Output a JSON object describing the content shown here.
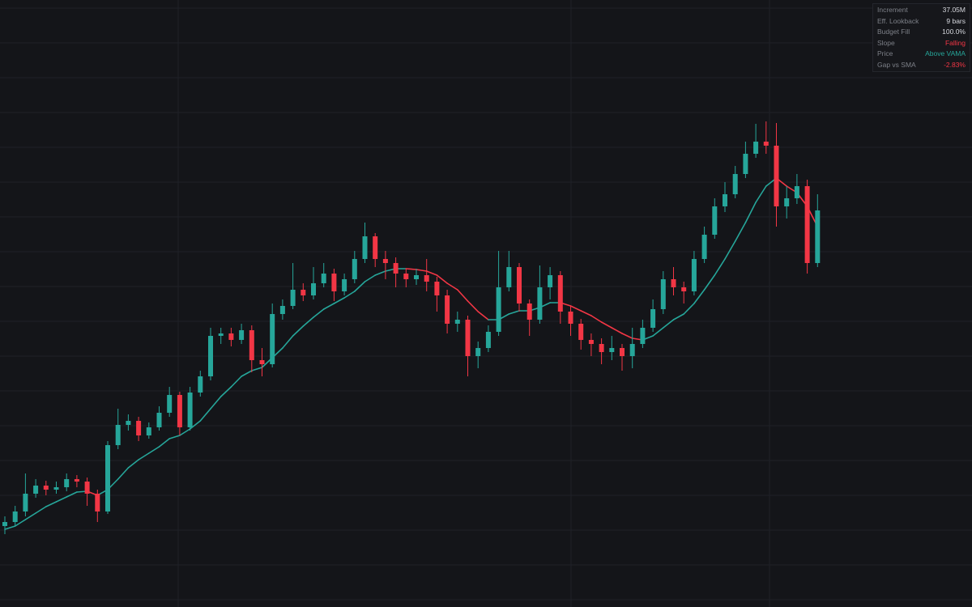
{
  "chart_data": {
    "type": "candlestick",
    "ylim": [
      0,
      750
    ],
    "grid": true,
    "up_color": "#26a69a",
    "down_color": "#f23645",
    "rise_color": "#26a69a",
    "fall_color": "#f23645",
    "open": [
      100,
      105,
      118,
      140,
      150,
      145,
      148,
      158,
      155,
      140,
      118,
      200,
      225,
      230,
      212,
      222,
      240,
      262,
      222,
      265,
      285,
      335,
      338,
      330,
      342,
      305,
      300,
      362,
      372,
      392,
      385,
      400,
      412,
      390,
      405,
      430,
      458,
      430,
      425,
      412,
      405,
      410,
      402,
      385,
      350,
      355,
      310,
      320,
      340,
      395,
      420,
      375,
      355,
      395,
      410,
      365,
      350,
      330,
      325,
      315,
      320,
      310,
      325,
      345,
      368,
      405,
      395,
      390,
      430,
      460,
      495,
      510,
      535,
      560,
      575,
      570,
      495,
      505,
      520,
      425
    ],
    "high": [
      112,
      125,
      165,
      158,
      156,
      155,
      165,
      163,
      160,
      145,
      205,
      245,
      238,
      235,
      228,
      248,
      272,
      266,
      272,
      292,
      345,
      345,
      345,
      350,
      348,
      320,
      375,
      380,
      425,
      400,
      420,
      425,
      418,
      412,
      440,
      475,
      462,
      440,
      432,
      418,
      418,
      430,
      408,
      392,
      365,
      360,
      328,
      348,
      440,
      440,
      425,
      380,
      422,
      420,
      415,
      372,
      356,
      338,
      332,
      335,
      325,
      345,
      355,
      380,
      415,
      420,
      402,
      440,
      470,
      505,
      525,
      545,
      575,
      597,
      600,
      598,
      520,
      535,
      528,
      510
    ],
    "low": [
      90,
      100,
      112,
      135,
      138,
      140,
      143,
      148,
      125,
      105,
      115,
      195,
      218,
      205,
      208,
      218,
      235,
      212,
      218,
      260,
      280,
      325,
      322,
      325,
      290,
      285,
      296,
      355,
      368,
      378,
      380,
      395,
      378,
      385,
      400,
      425,
      420,
      405,
      395,
      395,
      398,
      390,
      365,
      338,
      340,
      285,
      295,
      315,
      335,
      390,
      365,
      335,
      350,
      380,
      350,
      335,
      318,
      310,
      300,
      305,
      292,
      295,
      320,
      340,
      362,
      385,
      375,
      385,
      425,
      455,
      488,
      505,
      530,
      555,
      560,
      470,
      480,
      498,
      412,
      420
    ],
    "close": [
      105,
      118,
      140,
      150,
      145,
      148,
      158,
      155,
      140,
      118,
      200,
      225,
      230,
      212,
      222,
      240,
      262,
      222,
      265,
      285,
      335,
      338,
      330,
      342,
      305,
      300,
      362,
      372,
      392,
      385,
      400,
      412,
      390,
      405,
      430,
      458,
      430,
      425,
      412,
      405,
      410,
      402,
      385,
      350,
      355,
      310,
      320,
      340,
      395,
      420,
      375,
      355,
      395,
      410,
      365,
      350,
      330,
      325,
      315,
      320,
      310,
      325,
      345,
      368,
      405,
      395,
      390,
      430,
      460,
      495,
      510,
      535,
      560,
      575,
      570,
      495,
      505,
      520,
      425,
      490
    ],
    "vama_values": [
      96,
      100,
      108,
      116,
      124,
      130,
      136,
      142,
      143,
      138,
      145,
      158,
      172,
      182,
      190,
      198,
      208,
      212,
      220,
      230,
      245,
      260,
      272,
      285,
      292,
      296,
      308,
      320,
      335,
      347,
      358,
      368,
      375,
      382,
      390,
      402,
      410,
      415,
      418,
      418,
      417,
      415,
      410,
      400,
      392,
      378,
      365,
      355,
      355,
      362,
      366,
      366,
      370,
      376,
      376,
      372,
      366,
      360,
      352,
      345,
      338,
      332,
      330,
      335,
      345,
      355,
      362,
      375,
      392,
      410,
      430,
      452,
      475,
      500,
      520,
      530,
      520,
      512,
      495,
      470
    ]
  },
  "info_panel": {
    "rows": [
      {
        "label": "Increment",
        "value": "37.05M",
        "color": "#d6d8de"
      },
      {
        "label": "Eff. Lookback",
        "value": "9 bars",
        "color": "#d6d8de"
      },
      {
        "label": "Budget Fill",
        "value": "100.0%",
        "color": "#d6d8de"
      },
      {
        "label": "Slope",
        "value": "Falling",
        "color": "#f23645"
      },
      {
        "label": "Price",
        "value": "Above VAMA",
        "color": "#26a69a"
      },
      {
        "label": "Gap vs SMA",
        "value": "-2.83%",
        "color": "#f23645"
      }
    ]
  }
}
